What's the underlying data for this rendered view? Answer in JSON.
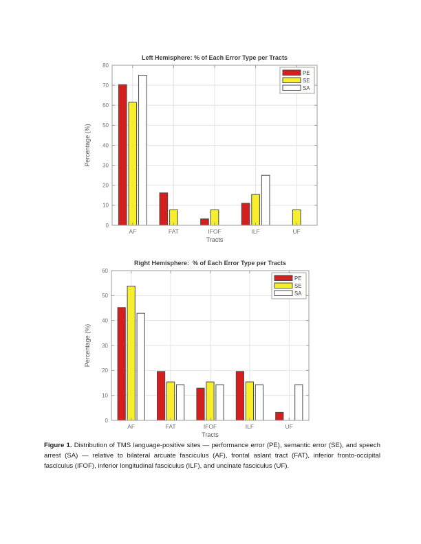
{
  "page": {
    "background": "#ffffff"
  },
  "caption": {
    "label": "Figure 1.",
    "text": "Distribution of TMS language-positive sites — performance error (PE), semantic error (SE), and speech arrest (SA) — relative to bilateral arcuate fasciculus (AF), frontal aslant tract (FAT), inferior fronto-occipital fasciculus (IFOF), inferior longitudinal fasciculus (ILF), and uncinate fasciculus (UF)."
  },
  "colors": {
    "pe_red": "#d41f1f",
    "se_yellow": "#f7ef2d",
    "sa_white": "#fefefe",
    "bar_edge": "#4a4a4a",
    "axis_box": "#9b9b9b",
    "grid": "#e3e3e3",
    "tick_label": "#6e6e6e",
    "axis_label": "#565656",
    "title": "#3c3c3c",
    "legend_border": "#a3a39a",
    "legend_bg": "#ffffff"
  },
  "chart_data": [
    {
      "type": "bar",
      "title": "Left Hemisphere: % of Each Error Type per Tracts",
      "xlabel": "Tracts",
      "ylabel": "Percentage (%)",
      "categories": [
        "AF",
        "FAT",
        "IFOF",
        "ILF",
        "UF"
      ],
      "series": [
        {
          "name": "PE",
          "color": "#d41f1f",
          "values": [
            70.3,
            16.2,
            3.2,
            11.0,
            0
          ]
        },
        {
          "name": "SE",
          "color": "#f7ef2d",
          "values": [
            61.5,
            7.7,
            7.7,
            15.4,
            7.7
          ]
        },
        {
          "name": "SA",
          "color": "#fefefe",
          "values": [
            75.0,
            0,
            0,
            25.0,
            0
          ]
        }
      ],
      "ylim": [
        0,
        80
      ],
      "ytick_step": 10,
      "grid": true,
      "legend": {
        "labels": [
          "PE",
          "SE",
          "SA"
        ],
        "position": "northeast"
      }
    },
    {
      "type": "bar",
      "title": "Right Hemisphere:  % of Each Error Type per Tracts",
      "xlabel": "Tracts",
      "ylabel": "Percentage (%)",
      "categories": [
        "AF",
        "FAT",
        "IFOF",
        "ILF",
        "UF"
      ],
      "series": [
        {
          "name": "PE",
          "color": "#d41f1f",
          "values": [
            45.2,
            19.6,
            12.9,
            19.6,
            3.2
          ]
        },
        {
          "name": "SE",
          "color": "#f7ef2d",
          "values": [
            53.8,
            15.4,
            15.4,
            15.4,
            0
          ]
        },
        {
          "name": "SA",
          "color": "#fefefe",
          "values": [
            42.9,
            14.3,
            14.3,
            14.3,
            14.3
          ]
        }
      ],
      "ylim": [
        0,
        60
      ],
      "ytick_step": 10,
      "grid": true,
      "legend": {
        "labels": [
          "PE",
          "SE",
          "SA"
        ],
        "position": "northeast"
      }
    }
  ]
}
